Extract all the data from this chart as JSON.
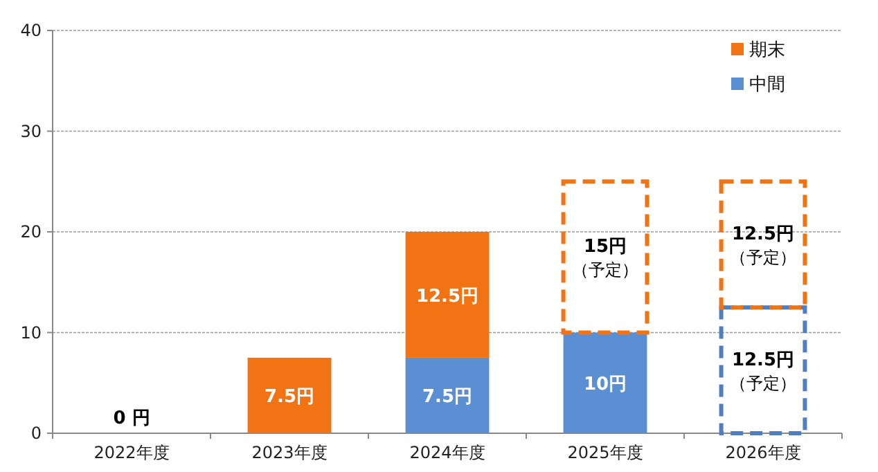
{
  "chart_data": {
    "type": "bar",
    "stacked": true,
    "categories": [
      "2022年度",
      "2023年度",
      "2024年度",
      "2025年度",
      "2026年度"
    ],
    "series": [
      {
        "name": "中間",
        "color": "#5b8fd4",
        "values": [
          0,
          0,
          7.5,
          10,
          null
        ],
        "value_labels": [
          "0 円",
          null,
          "7.5円",
          "10円",
          null
        ]
      },
      {
        "color": "#4f7fc0",
        "line_style": "dashed",
        "values": [
          null,
          null,
          null,
          null,
          12.5
        ],
        "value_labels": [
          null,
          null,
          null,
          null,
          "12.5円（予定）"
        ]
      },
      {
        "name": "期末",
        "color": "#f27314",
        "values": [
          0,
          7.5,
          12.5,
          null,
          null
        ],
        "value_labels": [
          null,
          "7.5円",
          "12.5円",
          null,
          null
        ]
      },
      {
        "color": "#f27314",
        "line_style": "dashed",
        "values": [
          null,
          null,
          null,
          15,
          12.5
        ],
        "value_labels": [
          null,
          null,
          null,
          "15円（予定）",
          "12.5円（予定）"
        ]
      }
    ],
    "ylim": [
      0,
      40
    ],
    "yticks": [
      0,
      10,
      20,
      30,
      40
    ],
    "grid": "y",
    "legend": "top right"
  }
}
